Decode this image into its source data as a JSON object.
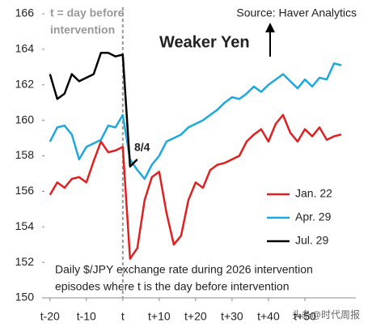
{
  "chart_data": {
    "type": "line",
    "title": "Weaker Yen",
    "source": "Source: Haver Analytics",
    "annotations": {
      "t_def": [
        "t = day before",
        "intervention"
      ],
      "point": "8/4",
      "note": [
        "Daily $/JPY exchange rate during 2026 intervention",
        "episodes where t is the day before intervention"
      ],
      "watermark": "头条@时代周报"
    },
    "x": [
      -20,
      -18,
      -16,
      -14,
      -12,
      -10,
      -8,
      -6,
      -4,
      -2,
      0,
      2,
      4,
      6,
      8,
      10,
      12,
      14,
      16,
      18,
      20,
      22,
      24,
      26,
      28,
      30,
      32,
      34,
      36,
      38,
      40,
      42,
      44,
      46,
      48,
      50,
      52,
      54,
      56,
      58,
      60
    ],
    "series": [
      {
        "name": "Jan. 22",
        "color": "#e02020",
        "values": [
          155.8,
          156.5,
          156.2,
          156.7,
          156.8,
          156.5,
          157.7,
          158.8,
          158.2,
          158.3,
          158.5,
          152.2,
          152.8,
          155.5,
          156.8,
          157.1,
          154.8,
          153.0,
          153.5,
          155.5,
          156.5,
          156.2,
          157.2,
          157.5,
          157.6,
          157.8,
          158.0,
          158.8,
          159.2,
          159.5,
          158.8,
          159.8,
          160.3,
          159.3,
          158.8,
          159.5,
          159.1,
          159.6,
          158.9,
          159.1,
          159.2
        ]
      },
      {
        "name": "Apr. 29",
        "color": "#1fa8e0",
        "values": [
          158.8,
          159.6,
          159.7,
          159.2,
          157.8,
          158.5,
          158.7,
          158.9,
          159.7,
          159.6,
          160.3,
          157.8,
          157.2,
          156.7,
          157.5,
          158.0,
          158.8,
          159.0,
          159.2,
          159.6,
          159.8,
          160.0,
          160.3,
          160.6,
          161.0,
          161.3,
          161.2,
          161.5,
          161.9,
          161.6,
          162.0,
          162.3,
          162.6,
          162.2,
          161.8,
          162.3,
          161.9,
          162.4,
          162.3,
          163.2,
          163.1
        ]
      },
      {
        "name": "Jul. 29",
        "color": "#000000",
        "values": [
          162.6,
          161.2,
          161.5,
          162.6,
          162.2,
          162.4,
          162.6,
          163.8,
          163.8,
          163.6,
          163.7,
          157.4,
          157.8,
          null,
          null,
          null,
          null,
          null,
          null,
          null,
          null,
          null,
          null,
          null,
          null,
          null,
          null,
          null,
          null,
          null,
          null,
          null,
          null,
          null,
          null,
          null,
          null,
          null,
          null,
          null,
          null
        ]
      }
    ],
    "xlim": [
      -21.5,
      64
    ],
    "xticks": [
      {
        "value": -20,
        "label": "t-20"
      },
      {
        "value": -10,
        "label": "t-10"
      },
      {
        "value": 0,
        "label": "t"
      },
      {
        "value": 10,
        "label": "t+10"
      },
      {
        "value": 20,
        "label": "t+20"
      },
      {
        "value": 30,
        "label": "t+30"
      },
      {
        "value": 40,
        "label": "t+40"
      },
      {
        "value": 50,
        "label": "t+50"
      }
    ],
    "ylim": [
      150,
      166
    ],
    "yticks": [
      150,
      152,
      154,
      156,
      158,
      160,
      162,
      164,
      166
    ]
  }
}
